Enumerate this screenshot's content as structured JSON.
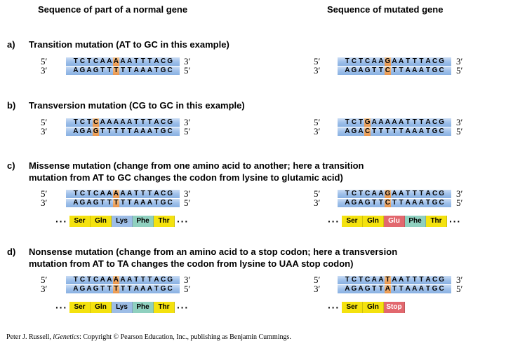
{
  "headers": {
    "left": "Sequence of part of a normal gene",
    "right": "Sequence of mutated gene"
  },
  "primes": {
    "five": "5′",
    "three": "3′"
  },
  "sections": [
    {
      "letter": "a)",
      "title_lines": [
        "Transition mutation (AT to GC in this example)"
      ],
      "normal": {
        "top": "TCTCAAAAATTTACG",
        "bottom": "AGAGTTTTTAAATGC",
        "highlight": [
          6
        ]
      },
      "mutated": {
        "top": "TCTCAAGAATTTACG",
        "bottom": "AGAGTTCTTAAATGC",
        "highlight": [
          6
        ]
      }
    },
    {
      "letter": "b)",
      "title_lines": [
        "Transversion mutation (CG to GC in this example)"
      ],
      "normal": {
        "top": "TCTCAAAAATTTACG",
        "bottom": "AGAGTTTTTAAATGC",
        "highlight": [
          3
        ]
      },
      "mutated": {
        "top": "TCTGAAAAATTTACG",
        "bottom": "AGACTTTTTAAATGC",
        "highlight": [
          3
        ]
      }
    },
    {
      "letter": "c)",
      "title_lines": [
        "Missense mutation (change from one amino acid to another; here a transition",
        "mutation from AT to GC changes the codon from lysine to glutamic acid)"
      ],
      "normal": {
        "top": "TCTCAAAAATTTACG",
        "bottom": "AGAGTTTTTAAATGC",
        "highlight": [
          6
        ]
      },
      "mutated": {
        "top": "TCTCAAGAATTTACG",
        "bottom": "AGAGTTCTTAAATGC",
        "highlight": [
          6
        ]
      },
      "normal_protein": [
        {
          "label": "Ser",
          "color": "yellow"
        },
        {
          "label": "Gln",
          "color": "yellow"
        },
        {
          "label": "Lys",
          "color": "blue"
        },
        {
          "label": "Phe",
          "color": "teal"
        },
        {
          "label": "Thr",
          "color": "yellow"
        }
      ],
      "mutated_protein": [
        {
          "label": "Ser",
          "color": "yellow"
        },
        {
          "label": "Gln",
          "color": "yellow"
        },
        {
          "label": "Glu",
          "color": "red"
        },
        {
          "label": "Phe",
          "color": "teal"
        },
        {
          "label": "Thr",
          "color": "yellow"
        }
      ],
      "dots_right": true
    },
    {
      "letter": "d)",
      "title_lines": [
        "Nonsense mutation (change from an amino acid to a stop codon; here a transversion",
        "mutation from AT to TA changes the codon from lysine to UAA stop codon)"
      ],
      "normal": {
        "top": "TCTCAAAAATTTACG",
        "bottom": "AGAGTTTTTAAATGC",
        "highlight": [
          6
        ]
      },
      "mutated": {
        "top": "TCTCAATAATTTACG",
        "bottom": "AGAGTTATTAAATGC",
        "highlight": [
          6
        ]
      },
      "normal_protein": [
        {
          "label": "Ser",
          "color": "yellow"
        },
        {
          "label": "Gln",
          "color": "yellow"
        },
        {
          "label": "Lys",
          "color": "blue"
        },
        {
          "label": "Phe",
          "color": "teal"
        },
        {
          "label": "Thr",
          "color": "yellow"
        }
      ],
      "mutated_protein": [
        {
          "label": "Ser",
          "color": "yellow"
        },
        {
          "label": "Gln",
          "color": "yellow"
        },
        {
          "label": "Stop",
          "color": "red"
        }
      ],
      "dots_right": false
    }
  ],
  "dots": "···",
  "credit": {
    "author": "Peter J. Russell, ",
    "book": "iGenetics",
    "rest": ": Copyright © Pearson Education, Inc., publishing as Benjamin Cummings."
  }
}
